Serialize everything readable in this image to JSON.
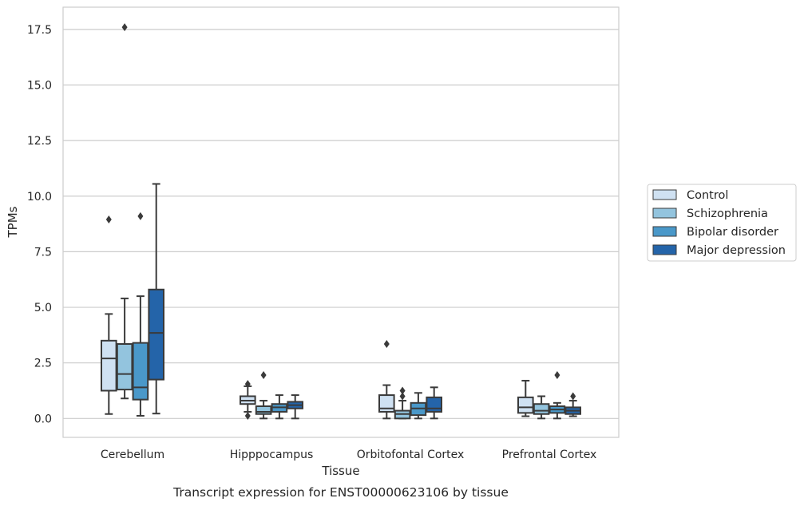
{
  "caption": "Transcript expression for ENST00000623106 by tissue",
  "chart_data": {
    "type": "boxplot",
    "xlabel": "Tissue",
    "ylabel": "TPMs",
    "ylim": [
      -0.85,
      18.5
    ],
    "yticks": [
      "0.0",
      "2.5",
      "5.0",
      "7.5",
      "10.0",
      "12.5",
      "15.0",
      "17.5"
    ],
    "ytick_values": [
      0,
      2.5,
      5,
      7.5,
      10,
      12.5,
      15,
      17.5
    ],
    "grid": "horizontal",
    "legend_position": "right-center",
    "categories": [
      "Cerebellum",
      "Hipppocampus",
      "Orbitofontal Cortex",
      "Prefrontal Cortex"
    ],
    "series": [
      {
        "name": "Control",
        "color": "#cfe1f2",
        "boxes": [
          {
            "whisker_low": 0.2,
            "q1": 1.25,
            "median": 2.7,
            "q3": 3.5,
            "whisker_high": 4.7,
            "outliers": [
              8.95
            ]
          },
          {
            "whisker_low": 0.3,
            "q1": 0.65,
            "median": 0.8,
            "q3": 1.0,
            "whisker_high": 1.45,
            "outliers": [
              1.55,
              0.12
            ]
          },
          {
            "whisker_low": 0.0,
            "q1": 0.3,
            "median": 0.45,
            "q3": 1.05,
            "whisker_high": 1.5,
            "outliers": [
              3.35
            ]
          },
          {
            "whisker_low": 0.1,
            "q1": 0.25,
            "median": 0.5,
            "q3": 0.95,
            "whisker_high": 1.7,
            "outliers": []
          }
        ]
      },
      {
        "name": "Schizophrenia",
        "color": "#93c4de",
        "boxes": [
          {
            "whisker_low": 0.9,
            "q1": 1.3,
            "median": 2.0,
            "q3": 3.35,
            "whisker_high": 5.4,
            "outliers": [
              17.6
            ]
          },
          {
            "whisker_low": 0.0,
            "q1": 0.2,
            "median": 0.3,
            "q3": 0.55,
            "whisker_high": 0.8,
            "outliers": [
              1.95
            ]
          },
          {
            "whisker_low": 0.0,
            "q1": 0.0,
            "median": 0.2,
            "q3": 0.35,
            "whisker_high": 0.8,
            "outliers": [
              1.0,
              1.25
            ]
          },
          {
            "whisker_low": 0.0,
            "q1": 0.2,
            "median": 0.35,
            "q3": 0.65,
            "whisker_high": 1.0,
            "outliers": []
          }
        ]
      },
      {
        "name": "Bipolar disorder",
        "color": "#4a98c9",
        "boxes": [
          {
            "whisker_low": 0.12,
            "q1": 0.85,
            "median": 1.4,
            "q3": 3.4,
            "whisker_high": 5.5,
            "outliers": [
              9.1
            ]
          },
          {
            "whisker_low": 0.0,
            "q1": 0.3,
            "median": 0.5,
            "q3": 0.65,
            "whisker_high": 1.05,
            "outliers": []
          },
          {
            "whisker_low": 0.0,
            "q1": 0.15,
            "median": 0.45,
            "q3": 0.7,
            "whisker_high": 1.15,
            "outliers": []
          },
          {
            "whisker_low": 0.0,
            "q1": 0.25,
            "median": 0.4,
            "q3": 0.55,
            "whisker_high": 0.7,
            "outliers": [
              1.95
            ]
          }
        ]
      },
      {
        "name": "Major depression",
        "color": "#2464a9",
        "boxes": [
          {
            "whisker_low": 0.22,
            "q1": 1.75,
            "median": 3.85,
            "q3": 5.8,
            "whisker_high": 10.55,
            "outliers": []
          },
          {
            "whisker_low": 0.0,
            "q1": 0.45,
            "median": 0.6,
            "q3": 0.75,
            "whisker_high": 1.05,
            "outliers": []
          },
          {
            "whisker_low": 0.0,
            "q1": 0.3,
            "median": 0.45,
            "q3": 0.95,
            "whisker_high": 1.4,
            "outliers": []
          },
          {
            "whisker_low": 0.1,
            "q1": 0.2,
            "median": 0.35,
            "q3": 0.5,
            "whisker_high": 0.8,
            "outliers": [
              1.0
            ]
          }
        ]
      }
    ]
  }
}
